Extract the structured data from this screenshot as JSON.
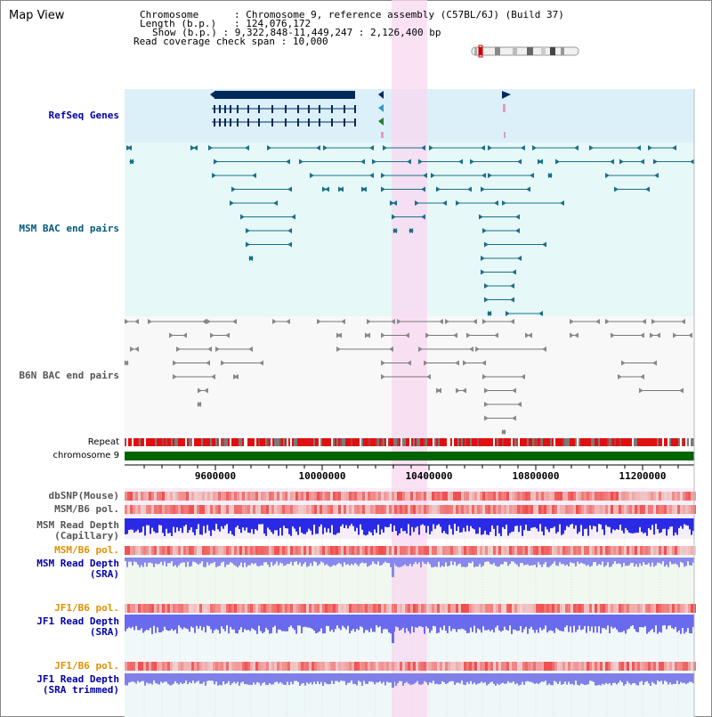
{
  "view_title": "Map View",
  "info": {
    "chromosome_label": "Chromosome",
    "chromosome_value": "Chromosome 9, reference assembly (C57BL/6J) (Build 37)",
    "length_label": "Length (b.p.)",
    "length_value": "124,076,172",
    "show_label": "Show (b.p.)",
    "show_value": "9,322,848-11,449,247 : 2,126,400 bp",
    "coverage_label": "Read coverage check span",
    "coverage_value": "10,000"
  },
  "tracks": {
    "refseq": "RefSeq Genes",
    "msm_bac": "MSM BAC end pairs",
    "b6n_bac": "B6N BAC end pairs",
    "repeat": "Repeat",
    "chromosome": "chromosome 9",
    "dbsnp": "dbSNP(Mouse)",
    "msm_b6_pol_1": "MSM/B6 pol.",
    "msm_depth_cap": "MSM Read Depth\n(Capillary)",
    "msm_b6_pol_2": "MSM/B6 pol.",
    "msm_depth_sra": "MSM Read Depth\n(SRA)",
    "jf1_b6_pol_1": "JF1/B6 pol.",
    "jf1_depth_sra": "JF1 Read Depth\n(SRA)",
    "jf1_b6_pol_2": "JF1/B6 pol.",
    "jf1_depth_trim": "JF1 Read Depth\n(SRA trimmed)"
  },
  "axis": {
    "ticks": [
      "9600000",
      "10000000",
      "10400000",
      "10800000",
      "11200000"
    ]
  },
  "colors": {
    "refseq_bg": "#dcf0fa",
    "msm_bg": "#e6f8f8",
    "b6n_bg": "#f8f8f8",
    "highlight": "#f8d8f0",
    "label_blue": "#0000aa",
    "label_teal": "#005a7a",
    "label_gray": "#555555",
    "label_orange": "#e09000",
    "chromosome_green": "#006400",
    "gene_navy": "#002a5a",
    "msm_line": "#1a6f8a",
    "b6n_line": "#777777"
  }
}
